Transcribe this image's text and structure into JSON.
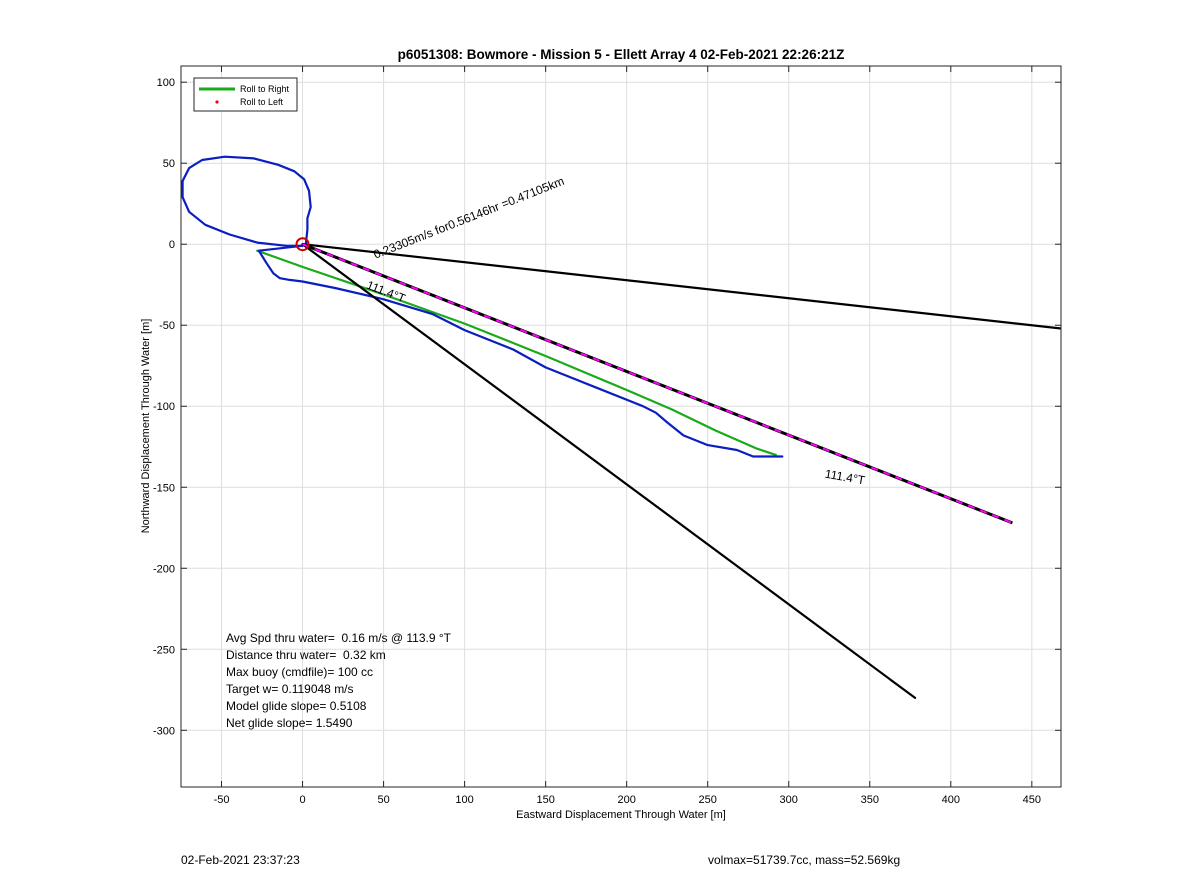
{
  "footer": {
    "timestamp": "02-Feb-2021 23:37:23",
    "vol_mass": "volmax=51739.7cc, mass=52.569kg"
  },
  "chart_data": {
    "type": "line",
    "title": "p6051308: Bowmore - Mission 5 - Ellett Array 4 02-Feb-2021 22:26:21Z",
    "xlabel": "Eastward Displacement Through Water [m]",
    "ylabel": "Northward Displacement Through Water [m]",
    "xlim": [
      -75,
      468
    ],
    "ylim": [
      -335,
      110
    ],
    "xticks": [
      -50,
      0,
      50,
      100,
      150,
      200,
      250,
      300,
      350,
      400,
      450
    ],
    "yticks": [
      100,
      50,
      0,
      -50,
      -100,
      -150,
      -200,
      -250,
      -300
    ],
    "grid": true,
    "legend": {
      "location": "top-left",
      "entries": [
        {
          "label": "Roll to Right",
          "color": "#1aaa1a",
          "style": "line"
        },
        {
          "label": "Roll to Left",
          "color": "#ff0000",
          "style": "dot"
        }
      ]
    },
    "series": [
      {
        "name": "Roll to Right",
        "color": "#1aaa1a",
        "x": [
          -28,
          0,
          50,
          100,
          150,
          200,
          228,
          255,
          280,
          292
        ],
        "y": [
          -4,
          -14,
          -31,
          -49,
          -69,
          -90,
          -102,
          -115,
          -126,
          -130
        ]
      },
      {
        "color": "#0b1ec0",
        "x": [
          2,
          3,
          3,
          5,
          4,
          1,
          -5,
          -15,
          -30,
          -48,
          -62,
          -70,
          -74,
          -74,
          -70,
          -60,
          -45,
          -28,
          -10,
          0
        ],
        "y": [
          0,
          9,
          16,
          23,
          33,
          40,
          45,
          49,
          53,
          54,
          52,
          47,
          39,
          29,
          20,
          12,
          6,
          1,
          -1,
          -1
        ]
      },
      {
        "color": "#0b1ec0",
        "x": [
          0,
          -27,
          -22,
          -18,
          -14,
          -8,
          0,
          20,
          50,
          80,
          100,
          130,
          150,
          180,
          210,
          218,
          225,
          235,
          250,
          268,
          278,
          288,
          296
        ],
        "y": [
          -1,
          -4,
          -12,
          -18,
          -21,
          -22,
          -23,
          -27,
          -34,
          -43,
          -53,
          -65,
          -76,
          -88,
          -100,
          -104,
          -110,
          -118,
          -124,
          -127,
          -131,
          -131,
          -131
        ]
      },
      {
        "color": "#000000",
        "x": [
          0,
          468
        ],
        "y": [
          0,
          -52
        ]
      },
      {
        "color": "#000000",
        "x": [
          0,
          378
        ],
        "y": [
          0,
          -280
        ]
      },
      {
        "color": "#000000",
        "dash_color": "#ff00ff",
        "x": [
          0,
          438
        ],
        "y": [
          0,
          -172
        ]
      }
    ],
    "markers": [
      {
        "type": "circle",
        "color": "#cc0000",
        "x": 0,
        "y": 0
      }
    ],
    "annotations": [
      {
        "text": "0.23305m/s for0.56146hr =0.47105km",
        "x": 45,
        "y": -9,
        "rotation": -21.5
      },
      {
        "text": "111.4°T",
        "x": 39,
        "y": -27,
        "rotation": 21.5
      },
      {
        "text": "111.4°T",
        "x": 322,
        "y": -144,
        "rotation": 10
      }
    ],
    "stats": [
      "Avg Spd thru water=  0.16 m/s @ 113.9 °T",
      "Distance thru water=  0.32 km",
      "Max buoy (cmdfile)= 100 cc",
      "Target w= 0.119048 m/s",
      "Model glide slope= 0.5108",
      "Net glide slope= 1.5490"
    ]
  }
}
